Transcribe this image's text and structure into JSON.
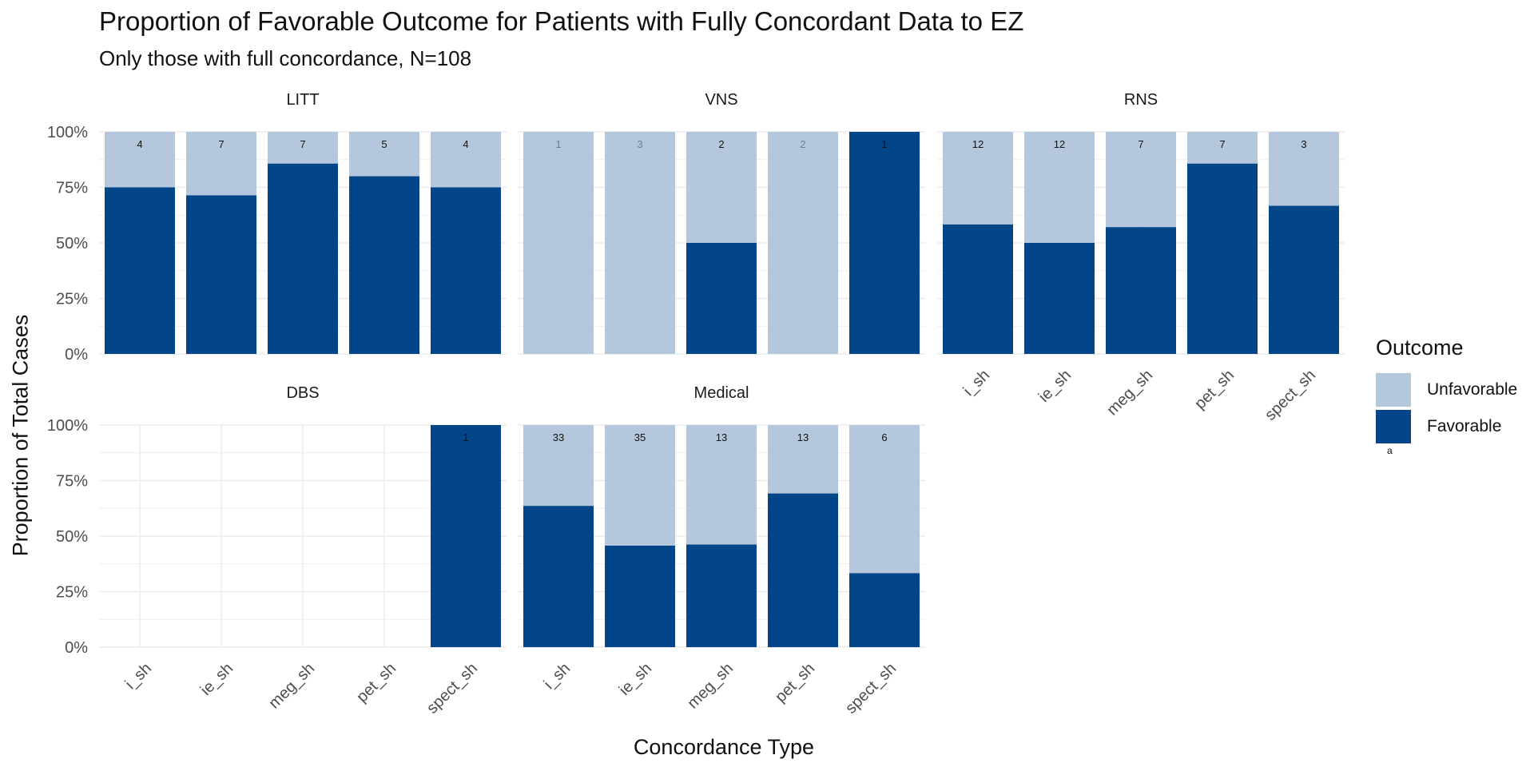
{
  "chart_data": {
    "type": "bar",
    "stacked": true,
    "title": "Proportion of Favorable Outcome for Patients with Fully Concordant Data to EZ",
    "subtitle": "Only those with full concordance, N=108",
    "xlabel": "Concordance Type",
    "ylabel": "Proportion of Total Cases",
    "ylim": [
      0,
      1
    ],
    "yticks": [
      "0%",
      "25%",
      "50%",
      "75%",
      "100%"
    ],
    "categories": [
      "i_sh",
      "ie_sh",
      "meg_sh",
      "pet_sh",
      "spect_sh"
    ],
    "grid": true,
    "legend_position": "right",
    "legend": {
      "title": "Outcome",
      "items": [
        {
          "label": "Unfavorable",
          "color": "#b4c7dc"
        },
        {
          "label": "Favorable",
          "color": "#024689"
        }
      ],
      "note": "a"
    },
    "colors": {
      "favorable": "#024689",
      "unfavorable": "#b4c7dc"
    },
    "panels": [
      {
        "name": "LITT",
        "favorable": [
          0.75,
          0.714,
          0.857,
          0.8,
          0.75
        ],
        "n": [
          "4",
          "7",
          "7",
          "5",
          "4"
        ]
      },
      {
        "name": "VNS",
        "favorable": [
          0,
          0,
          0.5,
          0,
          1.0
        ],
        "n": [
          "1",
          "3",
          "2",
          "2",
          "1"
        ]
      },
      {
        "name": "RNS",
        "favorable": [
          0.583,
          0.5,
          0.571,
          0.857,
          0.667
        ],
        "n": [
          "12",
          "12",
          "7",
          "7",
          "3"
        ]
      },
      {
        "name": "DBS",
        "favorable": [
          null,
          null,
          null,
          null,
          1.0
        ],
        "n": [
          "",
          "",
          "",
          "",
          "1"
        ]
      },
      {
        "name": "Medical",
        "favorable": [
          0.636,
          0.457,
          0.462,
          0.692,
          0.333
        ],
        "n": [
          "33",
          "35",
          "13",
          "13",
          "6"
        ]
      }
    ]
  }
}
